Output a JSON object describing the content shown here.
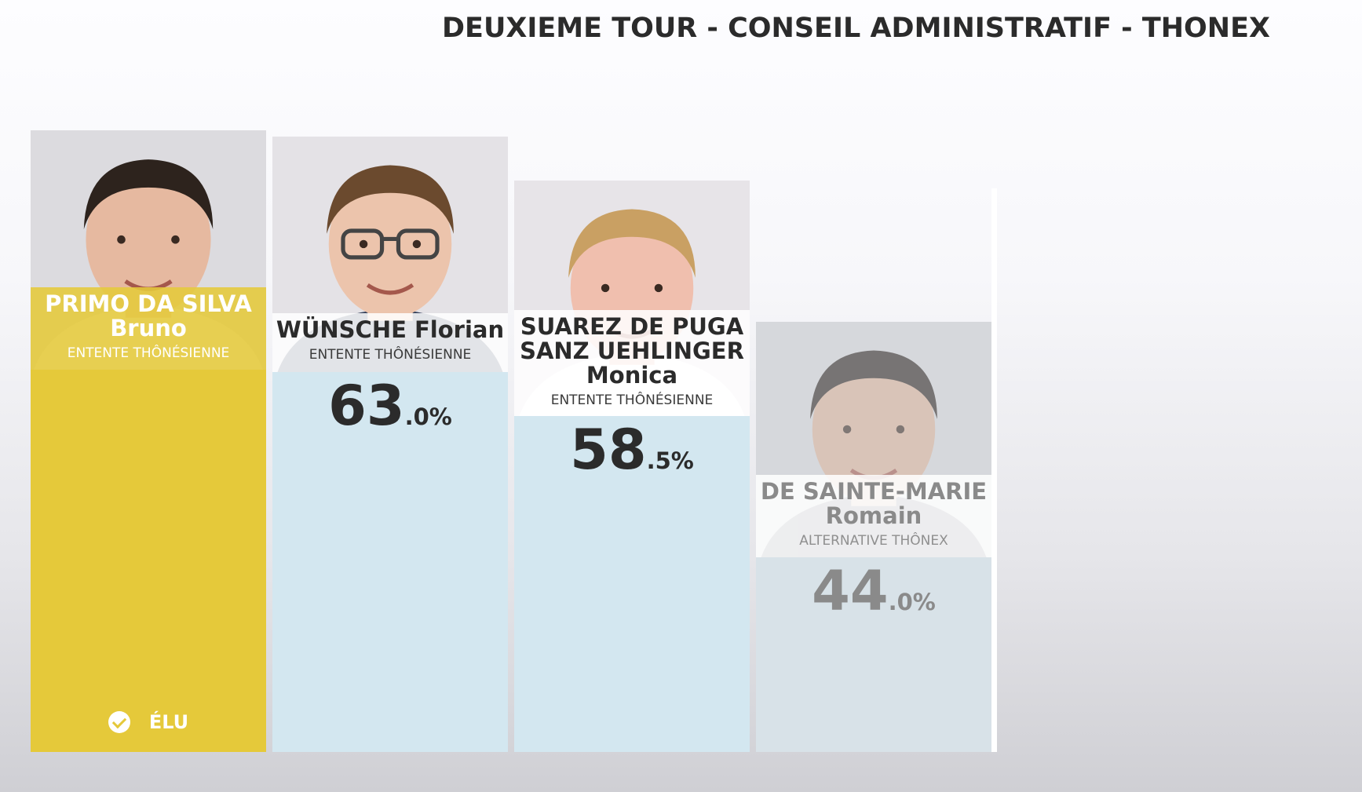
{
  "title": "DEUXIEME TOUR - CONSEIL ADMINISTRATIF - THONEX",
  "colors": {
    "elected_bar": "#e5c93a",
    "bar": "#d3e7f0",
    "dim_bar": "#d8e2e8",
    "text_dark": "#2b2b2b",
    "text_dim": "#8a8a8a"
  },
  "chart_data": {
    "type": "bar",
    "title": "DEUXIEME TOUR - CONSEIL ADMINISTRATIF - THONEX",
    "ylim": [
      0,
      100
    ],
    "categories": [
      "PRIMO DA SILVA Bruno",
      "WÜNSCHE Florian",
      "SUAREZ DE PUGA SANZ UEHLINGER Monica",
      "DE SAINTE-MARIE Romain"
    ],
    "candidates": [
      {
        "name_lines": [
          "PRIMO DA SILVA",
          "Bruno"
        ],
        "party": "ENTENTE THÔNÉSIENNE",
        "value": 63.6,
        "value_int": "",
        "value_dec": "",
        "elected": true,
        "elected_label": "ÉLU",
        "style": "elected"
      },
      {
        "name_lines": [
          "WÜNSCHE Florian"
        ],
        "party": "ENTENTE THÔNÉSIENNE",
        "value": 63.0,
        "value_int": "63",
        "value_dec": ".0%",
        "elected": false,
        "style": "normal"
      },
      {
        "name_lines": [
          "SUAREZ DE PUGA",
          "SANZ UEHLINGER",
          "Monica"
        ],
        "party": "ENTENTE THÔNÉSIENNE",
        "value": 58.5,
        "value_int": "58",
        "value_dec": ".5%",
        "elected": false,
        "style": "normal"
      },
      {
        "name_lines": [
          "DE SAINTE-MARIE",
          "Romain"
        ],
        "party": "ALTERNATIVE THÔNEX",
        "value": 44.0,
        "value_int": "44",
        "value_dec": ".0%",
        "elected": false,
        "style": "dim"
      }
    ]
  }
}
